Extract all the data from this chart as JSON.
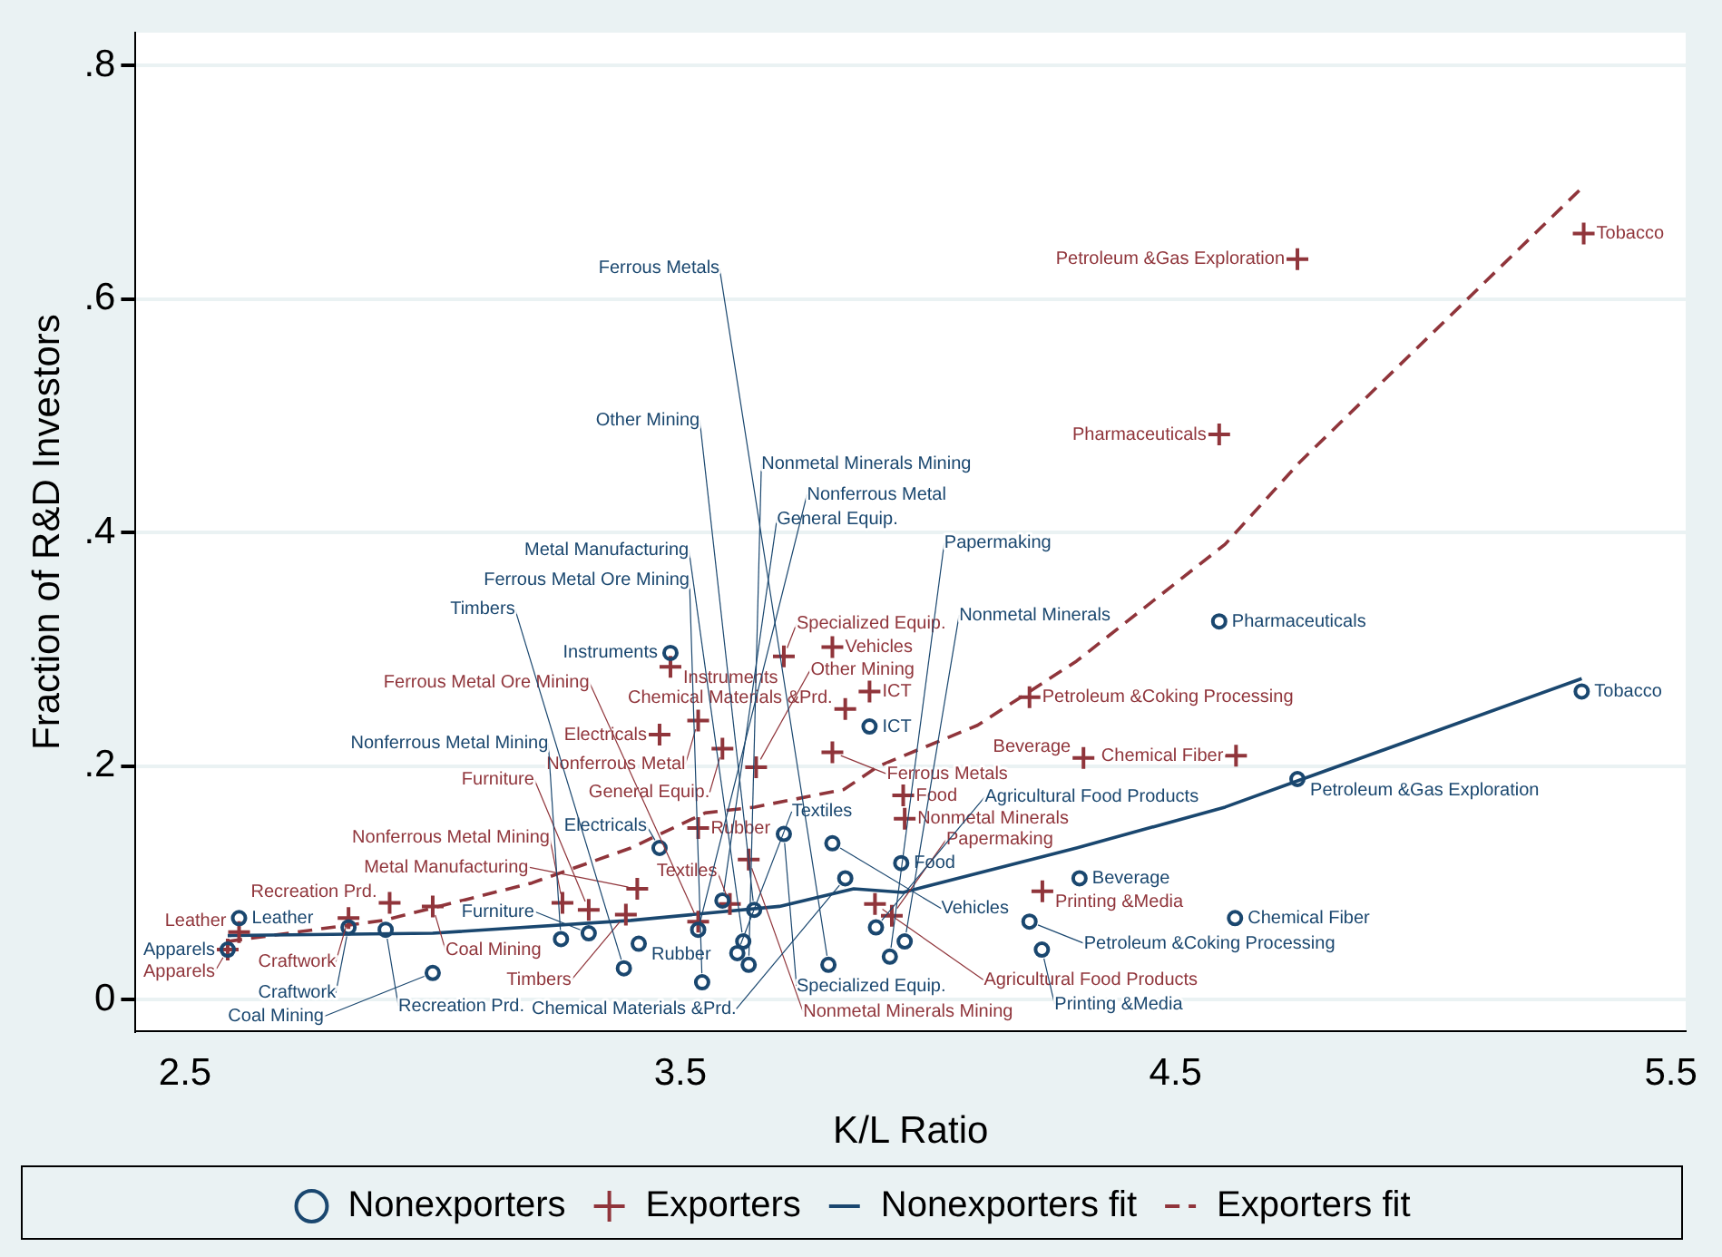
{
  "chart_data": {
    "type": "scatter",
    "xlabel": "K/L Ratio",
    "ylabel": "Fraction of R&D Investors",
    "xlim": [
      2.4,
      5.53
    ],
    "ylim": [
      -0.027,
      0.828
    ],
    "xticks": [
      2.5,
      3.5,
      4.5,
      5.5
    ],
    "yticks": [
      {
        "value": 0,
        "label": "0"
      },
      {
        "value": 0.2,
        "label": ".2"
      },
      {
        "value": 0.4,
        "label": ".4"
      },
      {
        "value": 0.6,
        "label": ".6"
      },
      {
        "value": 0.8,
        "label": ".8"
      }
    ],
    "grid": "y",
    "legend": "bottom",
    "series": [
      {
        "name": "Nonexporters",
        "type": "scatter",
        "marker": "circle",
        "color": "#1a476f",
        "x": [
          2.609,
          2.586,
          2.83,
          2.905,
          3.0,
          3.259,
          3.315,
          3.386,
          3.544,
          3.458,
          3.48,
          3.709,
          3.807,
          3.946,
          3.833,
          3.882,
          4.588,
          5.32,
          4.746,
          4.306,
          4.62,
          4.205,
          4.23,
          3.953,
          3.923,
          3.895,
          3.638,
          3.799,
          3.615,
          3.536,
          3.585,
          3.649,
          3.416,
          3.627
        ],
        "values": [
          0.07,
          0.043,
          0.062,
          0.06,
          0.023,
          0.052,
          0.057,
          0.027,
          0.015,
          0.13,
          0.297,
          0.142,
          0.134,
          0.117,
          0.104,
          0.234,
          0.324,
          0.264,
          0.189,
          0.104,
          0.07,
          0.067,
          0.043,
          0.05,
          0.037,
          0.062,
          0.03,
          0.03,
          0.04,
          0.06,
          0.085,
          0.077,
          0.048,
          0.05
        ],
        "value_labels": [
          "Leather",
          "Apparels",
          "Craftwork",
          "Recreation Prd.",
          "Coal Mining",
          "Nonferrous Metal Mining",
          "Furniture",
          "Timbers",
          "Ferrous Metal Ore Mining",
          "Electricals",
          "Instruments",
          "Specialized Equip.",
          "Vehicles",
          "Food",
          "Chemical Materials &Prd.",
          "ICT",
          "Pharmaceuticals",
          "Tobacco",
          "Petroleum &Gas Exploration",
          "Beverage",
          "Chemical Fiber",
          "Petroleum &Coking Processing",
          "Printing &Media",
          "Nonmetal Minerals",
          "Papermaking",
          "Agricultural Food Products",
          "Nonmetal Minerals Mining",
          "Ferrous Metals",
          "Textiles",
          "Nonferrous Metal",
          "General Equip.",
          "Other Mining",
          "Rubber",
          "Metal Manufacturing"
        ]
      },
      {
        "name": "Exporters",
        "type": "scatter",
        "marker": "cross",
        "color": "#90353b",
        "x": [
          2.609,
          2.586,
          2.83,
          2.913,
          3.0,
          3.262,
          3.315,
          3.39,
          3.536,
          3.458,
          3.48,
          3.709,
          3.807,
          3.95,
          3.833,
          3.882,
          4.588,
          5.324,
          4.746,
          4.314,
          4.622,
          4.205,
          4.231,
          3.953,
          3.927,
          3.893,
          3.638,
          3.807,
          3.6,
          3.536,
          3.585,
          3.653,
          3.536,
          3.413
        ],
        "values": [
          0.058,
          0.043,
          0.07,
          0.083,
          0.08,
          0.083,
          0.077,
          0.073,
          0.067,
          0.227,
          0.285,
          0.294,
          0.302,
          0.175,
          0.249,
          0.264,
          0.484,
          0.656,
          0.634,
          0.207,
          0.209,
          0.259,
          0.093,
          0.155,
          0.072,
          0.082,
          0.12,
          0.212,
          0.082,
          0.239,
          0.215,
          0.199,
          0.147,
          0.095
        ],
        "value_labels": [
          "Leather",
          "Apparels",
          "Craftwork",
          "Recreation Prd.",
          "Coal Mining",
          "Nonferrous Metal Mining",
          "Furniture",
          "Timbers",
          "Ferrous Metal Ore Mining",
          "Electricals",
          "Instruments",
          "Specialized Equip.",
          "Vehicles",
          "Food",
          "Chemical Materials &Prd.",
          "ICT",
          "Pharmaceuticals",
          "Tobacco",
          "Petroleum &Gas Exploration",
          "Beverage",
          "Chemical Fiber",
          "Petroleum &Coking Processing",
          "Printing &Media",
          "Nonmetal Minerals",
          "Papermaking",
          "Agricultural Food Products",
          "Nonmetal Minerals Mining",
          "Ferrous Metals",
          "Textiles",
          "Nonferrous Metal",
          "General Equip.",
          "Other Mining",
          "Rubber",
          "Metal Manufacturing"
        ]
      },
      {
        "name": "Nonexporters fit",
        "type": "line",
        "marker": "none",
        "line_style": "solid",
        "color": "#1a476f",
        "x": [
          2.586,
          3.0,
          3.4,
          3.7,
          3.85,
          3.95,
          4.3,
          4.6,
          4.75,
          5.32
        ],
        "values": [
          0.055,
          0.057,
          0.068,
          0.08,
          0.095,
          0.092,
          0.13,
          0.165,
          0.188,
          0.275
        ]
      },
      {
        "name": "Exporters fit",
        "type": "line",
        "marker": "none",
        "line_style": "dashed",
        "color": "#90353b",
        "x": [
          2.586,
          2.9,
          3.2,
          3.4,
          3.55,
          3.65,
          3.83,
          3.9,
          4.1,
          4.3,
          4.6,
          4.75,
          5.32
        ],
        "values": [
          0.05,
          0.068,
          0.1,
          0.13,
          0.16,
          0.165,
          0.18,
          0.2,
          0.235,
          0.29,
          0.39,
          0.46,
          0.695
        ]
      }
    ]
  }
}
